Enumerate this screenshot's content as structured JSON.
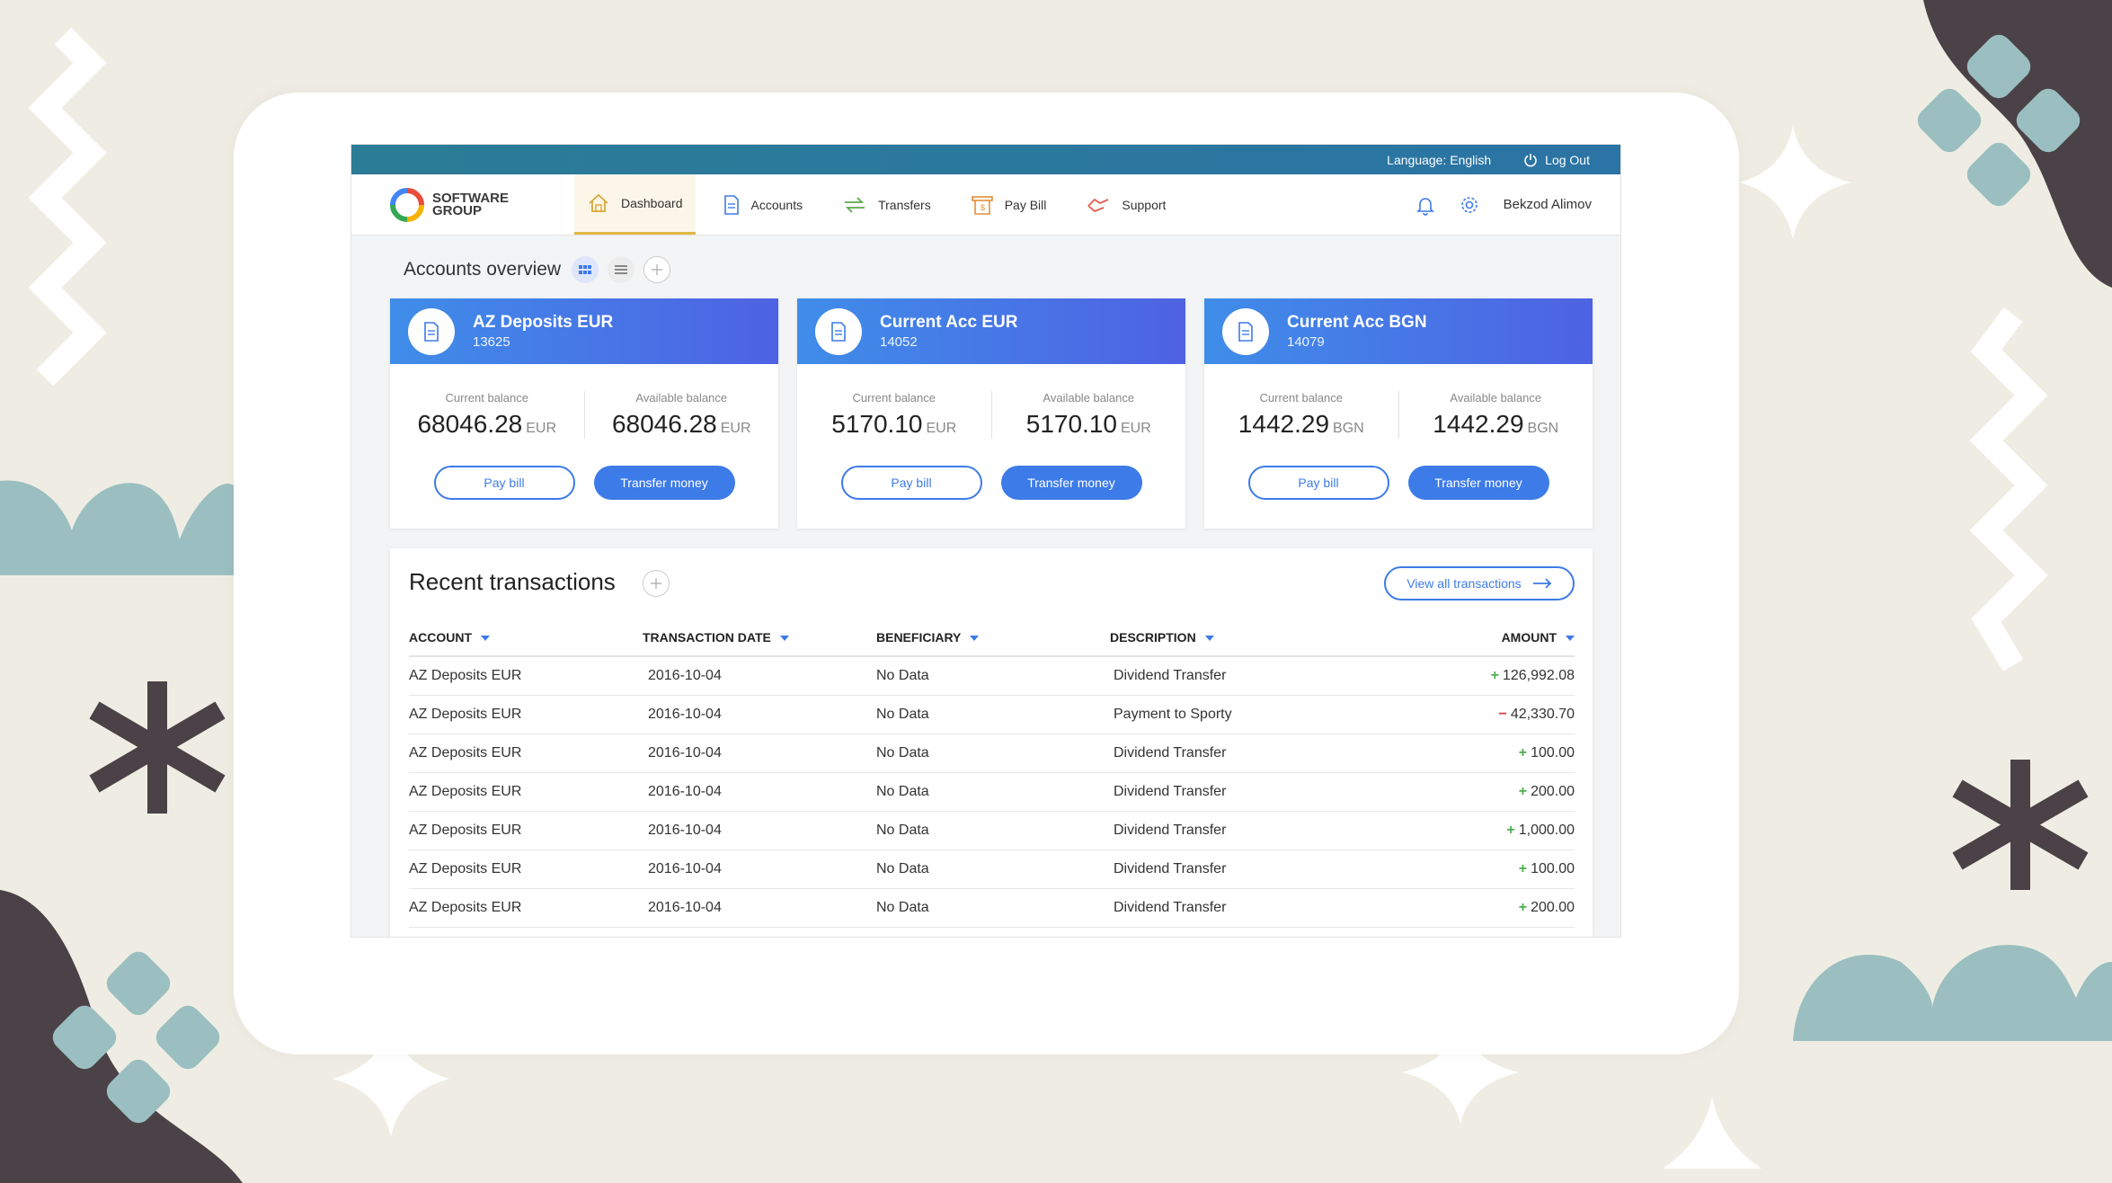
{
  "topbar": {
    "language": "Language: English",
    "logout": "Log Out"
  },
  "brand": {
    "line1": "SOFTWARE",
    "line2": "GROUP"
  },
  "nav": {
    "items": [
      {
        "label": "Dashboard",
        "icon": "home-icon",
        "active": true
      },
      {
        "label": "Accounts",
        "icon": "document-icon"
      },
      {
        "label": "Transfers",
        "icon": "transfer-arrows-icon"
      },
      {
        "label": "Pay Bill",
        "icon": "bill-icon"
      },
      {
        "label": "Support",
        "icon": "support-icon"
      }
    ],
    "user": "Bekzod Alimov"
  },
  "overview": {
    "title": "Accounts overview"
  },
  "accounts": [
    {
      "name": "AZ Deposits EUR",
      "number": "13625",
      "current_label": "Current balance",
      "current": "68046.28",
      "available_label": "Available balance",
      "available": "68046.28",
      "currency": "EUR",
      "pay": "Pay bill",
      "transfer": "Transfer money"
    },
    {
      "name": "Current Acc EUR",
      "number": "14052",
      "current_label": "Current balance",
      "current": "5170.10",
      "available_label": "Available balance",
      "available": "5170.10",
      "currency": "EUR",
      "pay": "Pay bill",
      "transfer": "Transfer money"
    },
    {
      "name": "Current Acc BGN",
      "number": "14079",
      "current_label": "Current balance",
      "current": "1442.29",
      "available_label": "Available balance",
      "available": "1442.29",
      "currency": "BGN",
      "pay": "Pay bill",
      "transfer": "Transfer money"
    }
  ],
  "transactions": {
    "title": "Recent transactions",
    "view_all": "View all transactions",
    "columns": [
      "ACCOUNT",
      "TRANSACTION DATE",
      "BENEFICIARY",
      "DESCRIPTION",
      "AMOUNT"
    ],
    "rows": [
      {
        "account": "AZ Deposits EUR",
        "date": "2016-10-04",
        "beneficiary": "No Data",
        "description": "Dividend Transfer",
        "sign": "+",
        "amount": "126,992.08"
      },
      {
        "account": "AZ Deposits EUR",
        "date": "2016-10-04",
        "beneficiary": "No Data",
        "description": "Payment to Sporty",
        "sign": "−",
        "amount": "42,330.70"
      },
      {
        "account": "AZ Deposits EUR",
        "date": "2016-10-04",
        "beneficiary": "No Data",
        "description": "Dividend Transfer",
        "sign": "+",
        "amount": "100.00"
      },
      {
        "account": "AZ Deposits EUR",
        "date": "2016-10-04",
        "beneficiary": "No Data",
        "description": "Dividend Transfer",
        "sign": "+",
        "amount": "200.00"
      },
      {
        "account": "AZ Deposits EUR",
        "date": "2016-10-04",
        "beneficiary": "No Data",
        "description": "Dividend Transfer",
        "sign": "+",
        "amount": "1,000.00"
      },
      {
        "account": "AZ Deposits EUR",
        "date": "2016-10-04",
        "beneficiary": "No Data",
        "description": "Dividend Transfer",
        "sign": "+",
        "amount": "100.00"
      },
      {
        "account": "AZ Deposits EUR",
        "date": "2016-10-04",
        "beneficiary": "No Data",
        "description": "Dividend Transfer",
        "sign": "+",
        "amount": "200.00"
      }
    ]
  },
  "colors": {
    "accent": "#3d7be8",
    "topbar": "#2b7c96",
    "positive": "#4caf50",
    "negative": "#e53935",
    "background": "#efede3"
  }
}
